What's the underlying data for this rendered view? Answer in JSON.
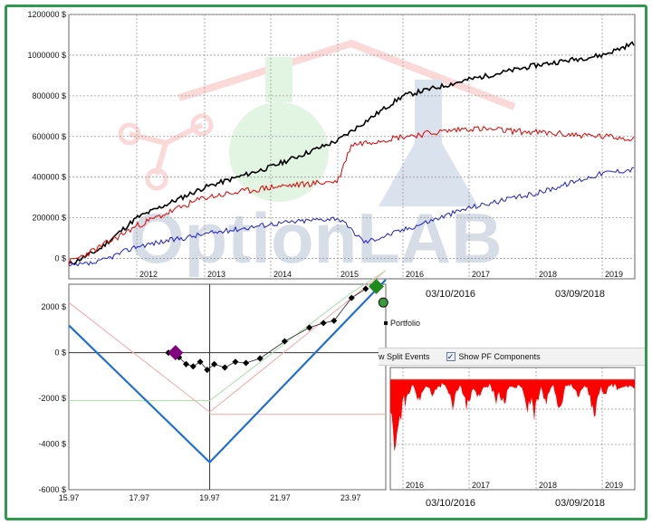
{
  "colors": {
    "frame_green": "#2e9c4c",
    "equity_black": "#000000",
    "equity_red": "#e00000",
    "equity_blue": "#1f1fc8",
    "payoff_blue": "#1f6fd6",
    "drawdown_red": "#ff0000",
    "marker_purple": "#800080",
    "marker_green": "#1e8a1e"
  },
  "watermark": {
    "text": "OptionLAB",
    "icon": "flask-molecule-house-logo-icon"
  },
  "equity_chart": {
    "y_ticks": [
      "1200000 $",
      "1000000 $",
      "800000 $",
      "600000 $",
      "400000 $",
      "200000 $",
      "0 $"
    ],
    "y_values": [
      1200000,
      1000000,
      800000,
      600000,
      400000,
      200000,
      0
    ],
    "ylim": [
      -100000,
      1200000
    ],
    "year_labels": [
      "2012",
      "2013",
      "2014",
      "2015",
      "2016",
      "2017",
      "2018",
      "2019"
    ],
    "date_labels": [
      "03/10/2016",
      "03/09/2018"
    ]
  },
  "payoff_chart": {
    "y_ticks": [
      "2000 $",
      "0 $",
      "-2000 $",
      "-4000 $",
      "-6000 $"
    ],
    "y_values": [
      2000,
      0,
      -2000,
      -4000,
      -6000
    ],
    "x_ticks": [
      "15.97",
      "17.97",
      "19.97",
      "21.97",
      "23.97"
    ],
    "x_values": [
      15.97,
      17.97,
      19.97,
      21.97,
      23.97
    ],
    "xlim": [
      15.97,
      24.97
    ],
    "ylim": [
      -6000,
      3000
    ],
    "payoff_line": [
      [
        15.97,
        1200
      ],
      [
        19.97,
        -4800
      ],
      [
        24.97,
        3200
      ]
    ],
    "points": [
      [
        18.8,
        0
      ],
      [
        19.1,
        -200
      ],
      [
        19.3,
        -500
      ],
      [
        19.5,
        -600
      ],
      [
        19.7,
        -400
      ],
      [
        19.9,
        -750
      ],
      [
        20.1,
        -500
      ],
      [
        20.4,
        -650
      ],
      [
        20.7,
        -400
      ],
      [
        21.0,
        -450
      ],
      [
        21.4,
        -250
      ],
      [
        22.1,
        500
      ],
      [
        22.8,
        1100
      ],
      [
        23.2,
        1300
      ],
      [
        23.5,
        1400
      ],
      [
        24.0,
        2400
      ],
      [
        24.4,
        2800
      ]
    ],
    "start_marker": [
      19.0,
      0
    ],
    "end_marker_diamond": [
      24.7,
      2900
    ],
    "end_marker_circle": [
      24.9,
      2200
    ]
  },
  "legend": {
    "portfolio_label": "Portfolio"
  },
  "toolbar": {
    "split_events_label": "w Split Events",
    "pf_components_label": "Show PF Components",
    "pf_components_checked": "✓"
  },
  "drawdown_chart": {
    "year_labels": [
      "2016",
      "2017",
      "2018",
      "2019"
    ],
    "date_labels": [
      "03/10/2016",
      "03/09/2018"
    ]
  }
}
